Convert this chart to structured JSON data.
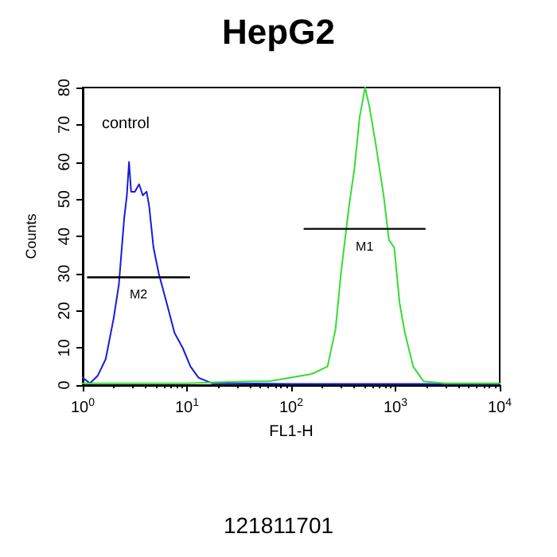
{
  "chart_data": {
    "type": "line",
    "title": "HepG2",
    "xlabel": "FL1-H",
    "ylabel": "Counts",
    "log": "x",
    "grid": false,
    "marker": "none",
    "line_style": "solid",
    "xlim": [
      1,
      10000
    ],
    "xticks": [
      {
        "value": 1,
        "label": "10$^{0}$"
      },
      {
        "value": 10,
        "label": "10$^{1}$"
      },
      {
        "value": 100,
        "label": "10$^{2}$"
      },
      {
        "value": 1000,
        "label": "10$^{3}$"
      },
      {
        "value": 10000,
        "label": "10$^{4}$"
      }
    ],
    "ylim": [
      0,
      80
    ],
    "yticks": [
      0,
      10,
      20,
      30,
      40,
      50,
      60,
      70,
      80
    ],
    "series": [
      {
        "color": "#1a1adc",
        "x": [
          1,
          1.17,
          1.39,
          1.66,
          1.98,
          2.22,
          2.5,
          2.65,
          2.78,
          2.91,
          3.16,
          3.47,
          3.77,
          4.1,
          4.34,
          4.77,
          5.36,
          6.4,
          7.6,
          9.1,
          10.8,
          12.9,
          17.4,
          30,
          100,
          1000,
          10000
        ],
        "values": [
          2,
          0.5,
          2.5,
          7,
          18,
          27,
          45,
          51,
          60,
          52,
          52,
          54,
          51,
          52,
          48,
          37,
          30,
          22,
          14,
          10,
          5,
          2,
          0.5,
          0.5,
          0.3,
          0.3,
          0.3
        ]
      },
      {
        "color": "#33dd33",
        "x": [
          1,
          10,
          40,
          61,
          157,
          223,
          266,
          300,
          358,
          403,
          453,
          511,
          561,
          645,
          770,
          866,
          973,
          1096,
          1233,
          1479,
          1862,
          3000,
          10000
        ],
        "values": [
          0.5,
          0.5,
          1,
          1,
          3,
          5,
          15,
          30,
          48,
          58,
          72,
          80,
          75,
          65,
          51,
          39,
          37,
          22,
          14,
          5,
          1,
          0.5,
          0.5
        ]
      },
      {
        "type": "line",
        "name": "M2",
        "color": "#000000",
        "x": [
          1.12,
          10.5
        ],
        "values": [
          29,
          29
        ]
      },
      {
        "type": "line",
        "name": "M1",
        "color": "#000000",
        "x": [
          134,
          1910
        ],
        "values": [
          42,
          42
        ]
      }
    ],
    "annotations": [
      "control",
      "121811701"
    ]
  }
}
